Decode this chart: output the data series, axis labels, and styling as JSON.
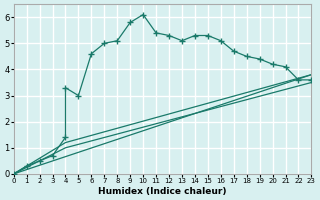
{
  "xlabel": "Humidex (Indice chaleur)",
  "ylabel": "",
  "bg_color": "#d8f0f0",
  "grid_color": "#ffffff",
  "line_color": "#1a7a6a",
  "xlim": [
    0,
    23
  ],
  "ylim": [
    0,
    6.5
  ],
  "xticks": [
    0,
    1,
    2,
    3,
    4,
    5,
    6,
    7,
    8,
    9,
    10,
    11,
    12,
    13,
    14,
    15,
    16,
    17,
    18,
    19,
    20,
    21,
    22,
    23
  ],
  "yticks": [
    0,
    1,
    2,
    3,
    4,
    5,
    6
  ],
  "line1_x": [
    0,
    1,
    2,
    3,
    4,
    4,
    5,
    6,
    7,
    8,
    9,
    10,
    11,
    12,
    13,
    14,
    15,
    16,
    17,
    18,
    19,
    20,
    21,
    22,
    23
  ],
  "line1_y": [
    0.0,
    0.3,
    0.5,
    0.7,
    1.4,
    3.3,
    3.0,
    4.6,
    5.0,
    5.1,
    5.8,
    6.1,
    5.4,
    5.3,
    5.1,
    5.3,
    5.3,
    5.1,
    4.7,
    4.5,
    4.4,
    4.2,
    4.1,
    3.6,
    3.6
  ],
  "line2_x": [
    0,
    23
  ],
  "line2_y": [
    0.0,
    3.8
  ],
  "line3_x": [
    0,
    4,
    23
  ],
  "line3_y": [
    0.0,
    1.2,
    3.8
  ],
  "line4_x": [
    0,
    4,
    23
  ],
  "line4_y": [
    0.0,
    1.0,
    3.5
  ]
}
